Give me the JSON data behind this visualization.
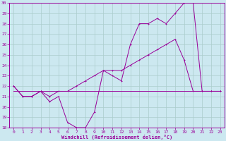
{
  "xlabel": "Windchill (Refroidissement éolien,°C)",
  "background_color": "#cce8f0",
  "grid_color": "#aacccc",
  "line_color": "#990099",
  "xlim": [
    -0.5,
    23.5
  ],
  "ylim": [
    18,
    30
  ],
  "yticks": [
    18,
    19,
    20,
    21,
    22,
    23,
    24,
    25,
    26,
    27,
    28,
    29,
    30
  ],
  "xticks": [
    0,
    1,
    2,
    3,
    4,
    5,
    6,
    7,
    8,
    9,
    10,
    11,
    12,
    13,
    14,
    15,
    16,
    17,
    18,
    19,
    20,
    21,
    22,
    23
  ],
  "series1_x": [
    0,
    1,
    2,
    3,
    4,
    5,
    6,
    7,
    8,
    9,
    10,
    11,
    12,
    13,
    14,
    15,
    16,
    17,
    18,
    19,
    20,
    21,
    22,
    23
  ],
  "series1_y": [
    22.0,
    21.0,
    21.0,
    21.5,
    20.5,
    21.0,
    18.5,
    18.0,
    18.0,
    19.5,
    23.5,
    23.0,
    22.5,
    26.0,
    28.0,
    28.0,
    28.5,
    28.0,
    29.0,
    30.0,
    30.0,
    21.5,
    21.5,
    21.5
  ],
  "series2_x": [
    0,
    1,
    2,
    3,
    4,
    5,
    6,
    7,
    8,
    9,
    10,
    11,
    12,
    13,
    14,
    15,
    16,
    17,
    18,
    19,
    20,
    21,
    22,
    23
  ],
  "series2_y": [
    22.0,
    21.0,
    21.0,
    21.5,
    21.0,
    21.5,
    21.5,
    22.0,
    22.5,
    23.0,
    23.5,
    23.5,
    23.5,
    24.0,
    24.5,
    25.0,
    25.5,
    26.0,
    26.5,
    24.5,
    21.5,
    21.5,
    21.5,
    21.5
  ],
  "series3_x": [
    0,
    23
  ],
  "series3_y": [
    21.5,
    21.5
  ]
}
